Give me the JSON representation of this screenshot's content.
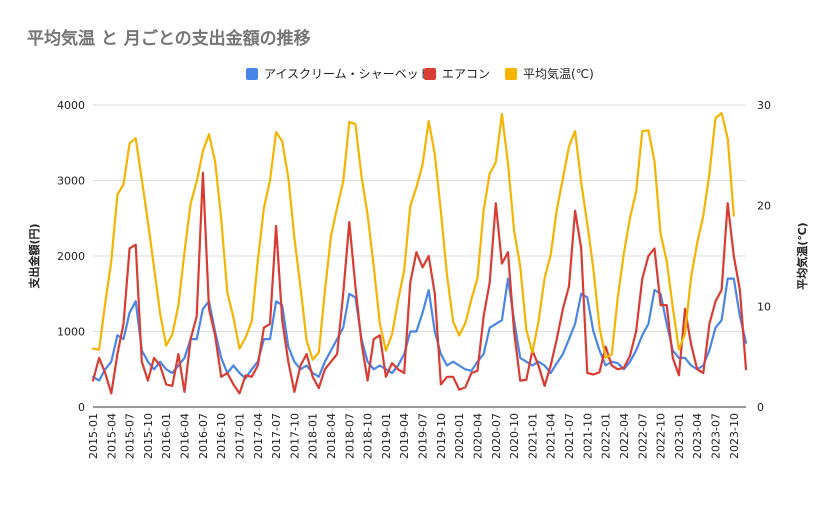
{
  "chart_data": {
    "type": "line",
    "title": "平均気温 と 月ごとの支出金額の推移",
    "ylabel_left": "支出金額(円)",
    "ylabel_right": "平均気温(℃)",
    "ylim_left": [
      0,
      4000
    ],
    "ylim_right": [
      0,
      30
    ],
    "yticks_left": [
      "0",
      "1000",
      "2000",
      "3000",
      "4000"
    ],
    "yticks_right": [
      "0",
      "10",
      "20",
      "30"
    ],
    "grid": true,
    "legend_position": "top",
    "x_start": "2015-01",
    "x_tick_labels": [
      "2015-01",
      "2015-04",
      "2015-07",
      "2015-10",
      "2016-01",
      "2016-04",
      "2016-07",
      "2016-10",
      "2017-01",
      "2017-04",
      "2017-07",
      "2017-10",
      "2018-01",
      "2018-04",
      "2018-07",
      "2018-10",
      "2019-01",
      "2019-04",
      "2019-07",
      "2019-10",
      "2020-01",
      "2020-04",
      "2020-07",
      "2020-10",
      "2021-01",
      "2021-04",
      "2021-07",
      "2021-10",
      "2022-01",
      "2022-04",
      "2022-07",
      "2022-10",
      "2023-01",
      "2023-04",
      "2023-07",
      "2023-10"
    ],
    "series": [
      {
        "name": "アイスクリーム・シャーベット",
        "color": "#4a86e8",
        "axis": "left",
        "values": [
          400,
          350,
          500,
          600,
          950,
          900,
          1250,
          1400,
          750,
          600,
          500,
          600,
          500,
          450,
          550,
          650,
          900,
          900,
          1300,
          1400,
          1000,
          650,
          450,
          550,
          450,
          380,
          500,
          600,
          900,
          900,
          1400,
          1350,
          800,
          600,
          500,
          550,
          450,
          400,
          600,
          750,
          900,
          1050,
          1500,
          1450,
          900,
          600,
          500,
          550,
          500,
          450,
          550,
          700,
          1000,
          1000,
          1250,
          1550,
          1000,
          700,
          550,
          600,
          550,
          500,
          480,
          600,
          700,
          1050,
          1100,
          1150,
          1700,
          1150,
          650,
          600,
          550,
          600,
          550,
          450,
          580,
          700,
          900,
          1100,
          1500,
          1450,
          1000,
          750,
          550,
          600,
          580,
          500,
          600,
          750,
          950,
          1100,
          1550,
          1500,
          1100,
          750,
          650,
          650,
          550,
          500,
          550,
          750,
          1050,
          1150,
          1700,
          1700,
          1200,
          850
        ]
      },
      {
        "name": "エアコン",
        "color": "#d93c32",
        "axis": "left",
        "values": [
          350,
          650,
          450,
          180,
          700,
          1100,
          2100,
          2150,
          600,
          350,
          650,
          550,
          300,
          280,
          700,
          200,
          900,
          1200,
          3100,
          1300,
          950,
          400,
          450,
          300,
          180,
          420,
          400,
          550,
          1050,
          1100,
          2400,
          1150,
          600,
          200,
          550,
          700,
          400,
          250,
          500,
          600,
          700,
          1500,
          2450,
          1600,
          850,
          350,
          900,
          950,
          400,
          580,
          500,
          450,
          1650,
          2050,
          1850,
          2000,
          1500,
          300,
          400,
          400,
          230,
          260,
          450,
          480,
          1200,
          1650,
          2700,
          1900,
          2050,
          1000,
          350,
          360,
          750,
          550,
          280,
          550,
          900,
          1300,
          1600,
          2600,
          2100,
          450,
          430,
          460,
          800,
          550,
          500,
          520,
          680,
          1000,
          1700,
          2000,
          2100,
          1350,
          1350,
          650,
          420,
          1300,
          830,
          500,
          450,
          1100,
          1400,
          1550,
          2700,
          2000,
          1550,
          500
        ]
      },
      {
        "name": "平均気温(℃)",
        "color": "#f4b400",
        "axis": "right",
        "values": [
          5.8,
          5.7,
          10.3,
          14.5,
          21.1,
          22.1,
          26.2,
          26.7,
          22.6,
          18.4,
          13.9,
          9.3,
          6.1,
          7.2,
          10.1,
          15.4,
          20.2,
          22.4,
          25.4,
          27.1,
          24.4,
          18.7,
          11.4,
          8.9,
          5.8,
          6.9,
          8.5,
          14.5,
          19.8,
          22.5,
          27.3,
          26.4,
          22.8,
          16.8,
          11.9,
          6.6,
          4.7,
          5.4,
          11.5,
          17.0,
          19.8,
          22.4,
          28.3,
          28.1,
          22.9,
          19.1,
          14.0,
          8.3,
          5.6,
          7.2,
          10.6,
          13.6,
          20.0,
          21.8,
          24.1,
          28.4,
          25.1,
          19.4,
          13.1,
          8.5,
          7.1,
          8.3,
          10.7,
          12.8,
          19.5,
          23.2,
          24.3,
          29.1,
          24.2,
          17.5,
          14.0,
          7.7,
          5.4,
          8.5,
          12.8,
          15.1,
          19.6,
          22.7,
          25.9,
          27.4,
          22.3,
          18.2,
          13.7,
          7.9,
          4.9,
          5.2,
          10.9,
          15.3,
          18.8,
          21.4,
          27.4,
          27.5,
          24.4,
          17.2,
          14.5,
          9.9,
          5.7,
          7.3,
          12.9,
          16.3,
          19.0,
          23.2,
          28.7,
          29.2,
          26.7,
          19.0
        ]
      }
    ]
  }
}
